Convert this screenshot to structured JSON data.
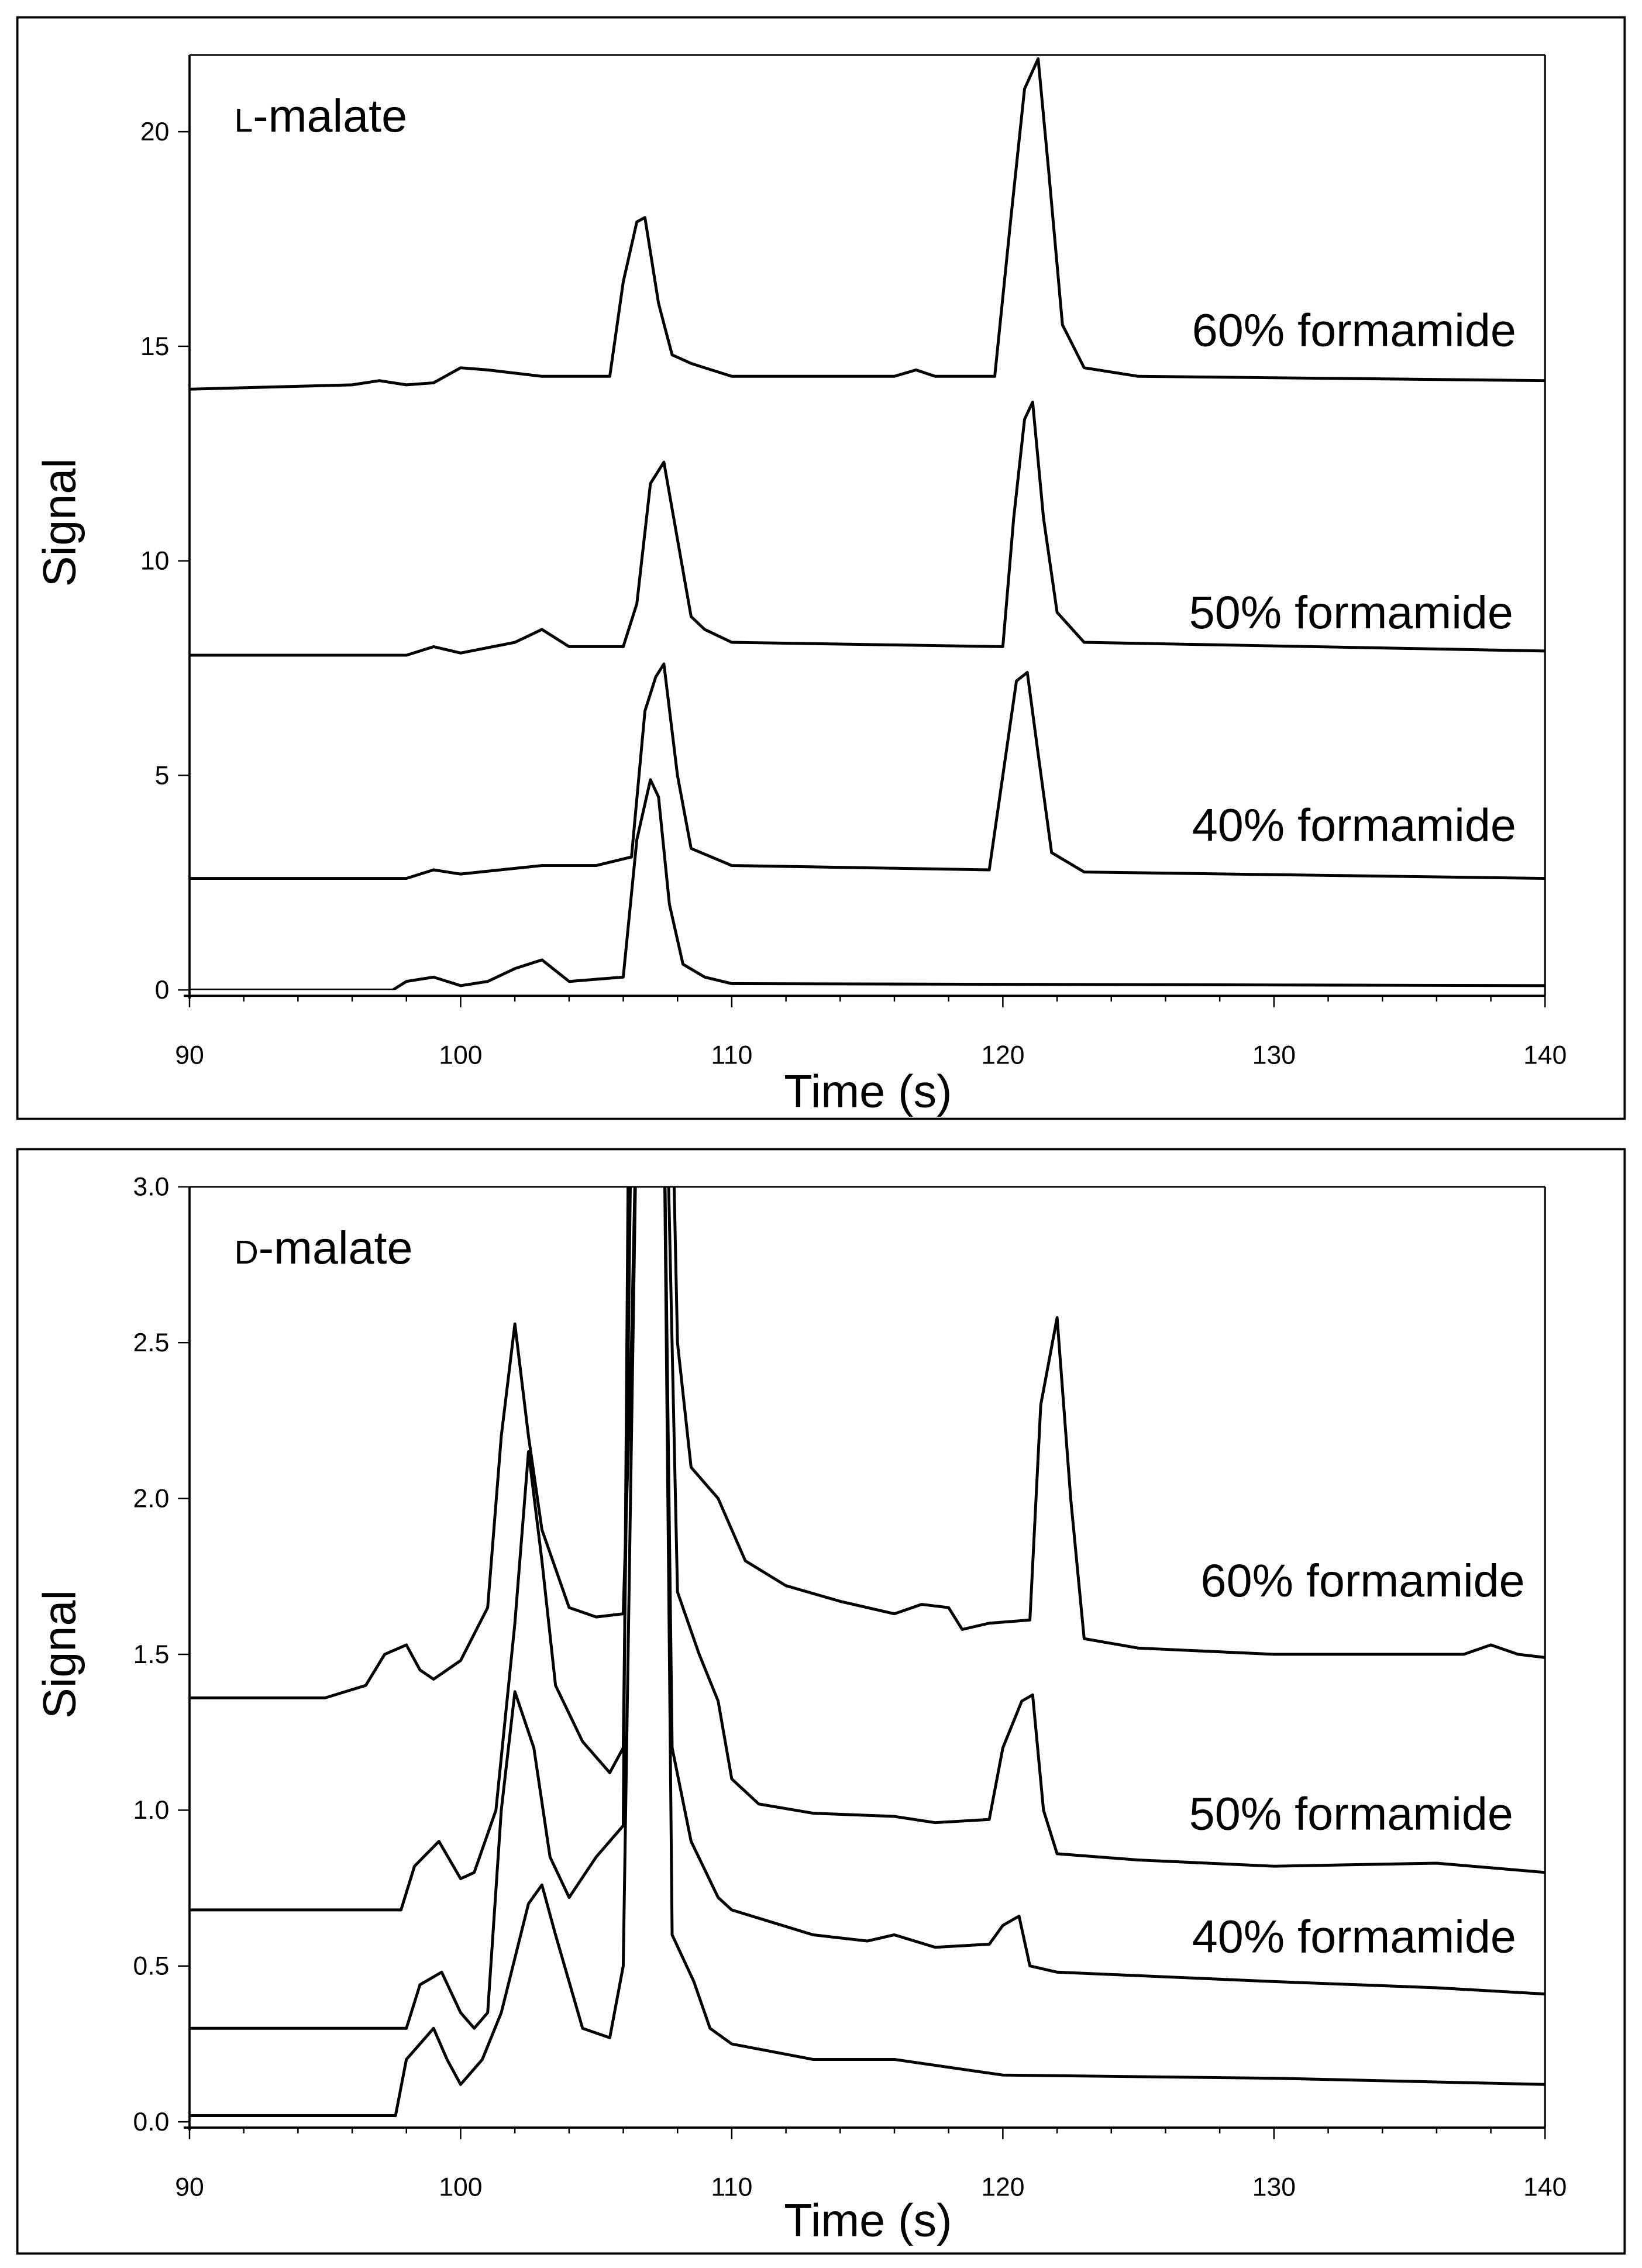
{
  "chart_data": [
    {
      "type": "line",
      "title": "L-malate",
      "title_prefix": "L",
      "title_rest": "-malate",
      "xlabel": "Time (s)",
      "ylabel": "Signal",
      "xlim": [
        90,
        140
      ],
      "ylim": [
        0,
        22
      ],
      "xticks": [
        90,
        100,
        110,
        120,
        130,
        140
      ],
      "yticks": [
        0,
        5,
        10,
        15,
        20
      ],
      "ytick_labels": [
        "0",
        "5",
        "10",
        "15",
        "20"
      ],
      "series": [
        {
          "name": "60% formamide",
          "points": [
            [
              90,
              14.0
            ],
            [
              96,
              14.1
            ],
            [
              97,
              14.2
            ],
            [
              98,
              14.1
            ],
            [
              99,
              14.15
            ],
            [
              100,
              14.5
            ],
            [
              101,
              14.45
            ],
            [
              103,
              14.3
            ],
            [
              105.5,
              14.3
            ],
            [
              106,
              16.5
            ],
            [
              106.5,
              17.9
            ],
            [
              106.8,
              18.0
            ],
            [
              107.3,
              16
            ],
            [
              107.8,
              14.8
            ],
            [
              108.5,
              14.6
            ],
            [
              109,
              14.5
            ],
            [
              110,
              14.3
            ],
            [
              116,
              14.3
            ],
            [
              116.8,
              14.45
            ],
            [
              117.5,
              14.3
            ],
            [
              119.7,
              14.3
            ],
            [
              120.3,
              18
            ],
            [
              120.8,
              21
            ],
            [
              121.3,
              21.7
            ],
            [
              121.7,
              19
            ],
            [
              122.2,
              15.5
            ],
            [
              123,
              14.5
            ],
            [
              125,
              14.3
            ],
            [
              140,
              14.2
            ]
          ]
        },
        {
          "name": "50% formamide",
          "points": [
            [
              90,
              7.8
            ],
            [
              98,
              7.8
            ],
            [
              99,
              8.0
            ],
            [
              100,
              7.85
            ],
            [
              102,
              8.1
            ],
            [
              103,
              8.4
            ],
            [
              104,
              8.0
            ],
            [
              106,
              8.0
            ],
            [
              106.5,
              9
            ],
            [
              107,
              11.8
            ],
            [
              107.5,
              12.3
            ],
            [
              108,
              10.5
            ],
            [
              108.5,
              8.7
            ],
            [
              109,
              8.4
            ],
            [
              110,
              8.1
            ],
            [
              120,
              8.0
            ],
            [
              120.4,
              11
            ],
            [
              120.8,
              13.3
            ],
            [
              121.1,
              13.7
            ],
            [
              121.5,
              11
            ],
            [
              122,
              8.8
            ],
            [
              123,
              8.1
            ],
            [
              140,
              7.9
            ]
          ]
        },
        {
          "name": "40% formamide",
          "points": [
            [
              90,
              2.6
            ],
            [
              98,
              2.6
            ],
            [
              99,
              2.8
            ],
            [
              100,
              2.7
            ],
            [
              103,
              2.9
            ],
            [
              105,
              2.9
            ],
            [
              106.3,
              3.1
            ],
            [
              106.8,
              6.5
            ],
            [
              107.2,
              7.3
            ],
            [
              107.5,
              7.6
            ],
            [
              108,
              5
            ],
            [
              108.5,
              3.3
            ],
            [
              110,
              2.9
            ],
            [
              119.5,
              2.8
            ],
            [
              120,
              5
            ],
            [
              120.5,
              7.2
            ],
            [
              120.9,
              7.4
            ],
            [
              121.3,
              5.5
            ],
            [
              121.8,
              3.2
            ],
            [
              123,
              2.75
            ],
            [
              140,
              2.6
            ]
          ]
        },
        {
          "name": "",
          "points": [
            [
              90,
              0
            ],
            [
              97.5,
              0
            ],
            [
              98,
              0.2
            ],
            [
              99,
              0.3
            ],
            [
              100,
              0.1
            ],
            [
              101,
              0.2
            ],
            [
              102,
              0.5
            ],
            [
              103,
              0.7
            ],
            [
              104,
              0.2
            ],
            [
              106,
              0.3
            ],
            [
              106.5,
              3.5
            ],
            [
              107,
              4.9
            ],
            [
              107.3,
              4.5
            ],
            [
              107.7,
              2
            ],
            [
              108.2,
              0.6
            ],
            [
              109,
              0.3
            ],
            [
              110,
              0.15
            ],
            [
              140,
              0.1
            ]
          ]
        }
      ]
    },
    {
      "type": "line",
      "title": "D-malate",
      "title_prefix": "D",
      "title_rest": "-malate",
      "xlabel": "Time (s)",
      "ylabel": "Signal",
      "xlim": [
        90,
        140
      ],
      "ylim": [
        0,
        3.0
      ],
      "xticks": [
        90,
        100,
        110,
        120,
        130,
        140
      ],
      "yticks": [
        0,
        0.5,
        1.0,
        1.5,
        2.0,
        2.5,
        3.0
      ],
      "ytick_labels": [
        "0.0",
        "0.5",
        "1.0",
        "1.5",
        "2.0",
        "2.5",
        "3.0"
      ],
      "series": [
        {
          "name": "60% formamide",
          "points": [
            [
              90,
              1.36
            ],
            [
              95,
              1.36
            ],
            [
              96.5,
              1.4
            ],
            [
              97.2,
              1.5
            ],
            [
              98,
              1.53
            ],
            [
              98.5,
              1.45
            ],
            [
              99,
              1.42
            ],
            [
              100,
              1.48
            ],
            [
              101,
              1.65
            ],
            [
              101.5,
              2.2
            ],
            [
              102,
              2.56
            ],
            [
              102.5,
              2.2
            ],
            [
              103,
              1.9
            ],
            [
              104,
              1.65
            ],
            [
              105,
              1.62
            ],
            [
              106,
              1.63
            ],
            [
              106.3,
              2.5
            ],
            [
              106.5,
              3.3
            ],
            [
              107.8,
              3.3
            ],
            [
              108,
              2.5
            ],
            [
              108.5,
              2.1
            ],
            [
              109.5,
              2.0
            ],
            [
              110,
              1.9
            ],
            [
              110.5,
              1.8
            ],
            [
              112,
              1.72
            ],
            [
              114,
              1.67
            ],
            [
              116,
              1.63
            ],
            [
              117,
              1.66
            ],
            [
              118,
              1.65
            ],
            [
              118.5,
              1.58
            ],
            [
              119.5,
              1.6
            ],
            [
              121,
              1.61
            ],
            [
              121.4,
              2.3
            ],
            [
              122,
              2.58
            ],
            [
              122.5,
              2.0
            ],
            [
              123,
              1.55
            ],
            [
              125,
              1.52
            ],
            [
              130,
              1.5
            ],
            [
              137,
              1.5
            ],
            [
              138,
              1.53
            ],
            [
              139,
              1.5
            ],
            [
              140,
              1.49
            ]
          ]
        },
        {
          "name": "50% formamide",
          "points": [
            [
              90,
              0.68
            ],
            [
              97.8,
              0.68
            ],
            [
              98.3,
              0.82
            ],
            [
              99.2,
              0.9
            ],
            [
              100,
              0.78
            ],
            [
              100.5,
              0.8
            ],
            [
              101.3,
              1.0
            ],
            [
              102,
              1.6
            ],
            [
              102.5,
              2.15
            ],
            [
              103,
              1.8
            ],
            [
              103.5,
              1.4
            ],
            [
              104.5,
              1.22
            ],
            [
              105.5,
              1.12
            ],
            [
              106,
              1.2
            ],
            [
              106.3,
              3.3
            ],
            [
              107.6,
              3.3
            ],
            [
              108,
              1.7
            ],
            [
              108.8,
              1.5
            ],
            [
              109.5,
              1.35
            ],
            [
              110,
              1.1
            ],
            [
              111,
              1.02
            ],
            [
              113,
              0.99
            ],
            [
              116,
              0.98
            ],
            [
              117.5,
              0.96
            ],
            [
              119.5,
              0.97
            ],
            [
              120,
              1.2
            ],
            [
              120.7,
              1.35
            ],
            [
              121.1,
              1.37
            ],
            [
              121.5,
              1.0
            ],
            [
              122,
              0.86
            ],
            [
              125,
              0.84
            ],
            [
              130,
              0.82
            ],
            [
              136,
              0.83
            ],
            [
              140,
              0.8
            ]
          ]
        },
        {
          "name": "40% formamide",
          "points": [
            [
              90,
              0.3
            ],
            [
              98,
              0.3
            ],
            [
              98.5,
              0.44
            ],
            [
              99.3,
              0.48
            ],
            [
              100,
              0.35
            ],
            [
              100.5,
              0.3
            ],
            [
              101,
              0.35
            ],
            [
              101.5,
              1.0
            ],
            [
              102,
              1.38
            ],
            [
              102.7,
              1.2
            ],
            [
              103.3,
              0.85
            ],
            [
              104,
              0.72
            ],
            [
              105,
              0.85
            ],
            [
              106,
              0.95
            ],
            [
              106.2,
              3.3
            ],
            [
              107.5,
              3.3
            ],
            [
              107.8,
              1.2
            ],
            [
              108.5,
              0.9
            ],
            [
              109.5,
              0.72
            ],
            [
              110,
              0.68
            ],
            [
              113,
              0.6
            ],
            [
              115,
              0.58
            ],
            [
              116,
              0.6
            ],
            [
              117.5,
              0.56
            ],
            [
              119.5,
              0.57
            ],
            [
              120,
              0.63
            ],
            [
              120.6,
              0.66
            ],
            [
              121,
              0.5
            ],
            [
              122,
              0.48
            ],
            [
              130,
              0.45
            ],
            [
              136,
              0.43
            ],
            [
              140,
              0.41
            ]
          ]
        },
        {
          "name": "",
          "points": [
            [
              90,
              0.02
            ],
            [
              97.6,
              0.02
            ],
            [
              98,
              0.2
            ],
            [
              99,
              0.3
            ],
            [
              99.5,
              0.2
            ],
            [
              100,
              0.12
            ],
            [
              100.8,
              0.2
            ],
            [
              101.5,
              0.35
            ],
            [
              102.5,
              0.7
            ],
            [
              103,
              0.76
            ],
            [
              103.5,
              0.6
            ],
            [
              104.5,
              0.3
            ],
            [
              105.5,
              0.27
            ],
            [
              106,
              0.5
            ],
            [
              106.5,
              3.3
            ],
            [
              107.5,
              3.3
            ],
            [
              107.8,
              0.6
            ],
            [
              108.6,
              0.45
            ],
            [
              109.2,
              0.3
            ],
            [
              110,
              0.25
            ],
            [
              113,
              0.2
            ],
            [
              116,
              0.2
            ],
            [
              120,
              0.15
            ],
            [
              130,
              0.14
            ],
            [
              140,
              0.12
            ]
          ]
        }
      ]
    }
  ]
}
